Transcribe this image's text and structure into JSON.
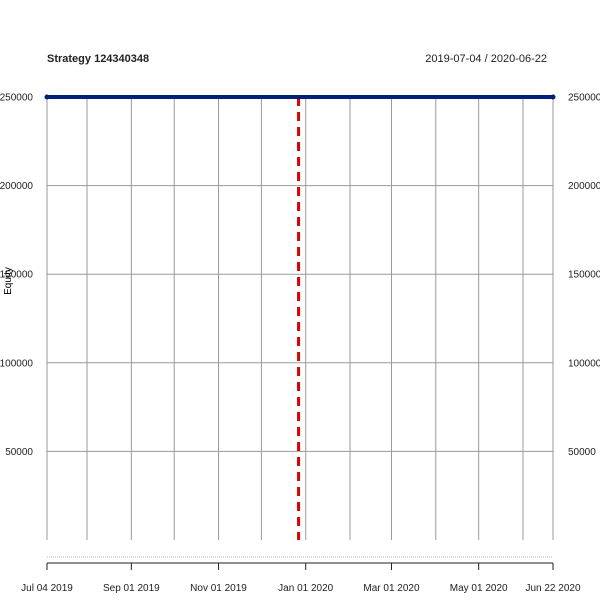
{
  "chart_data": {
    "type": "line",
    "title": "Strategy 124340348",
    "date_range_label": "2019-07-04 / 2020-06-22",
    "ylabel": "Equity",
    "xlabel": "",
    "x_range": [
      "2019-07-04",
      "2020-06-22"
    ],
    "ylim": [
      0,
      250000
    ],
    "grid": true,
    "x_ticks": [
      {
        "date": "2019-07-04",
        "label": "Jul 04 2019"
      },
      {
        "date": "2019-09-01",
        "label": "Sep 01 2019"
      },
      {
        "date": "2019-11-01",
        "label": "Nov 01 2019"
      },
      {
        "date": "2020-01-01",
        "label": "Jan 01 2020"
      },
      {
        "date": "2020-03-01",
        "label": "Mar 01 2020"
      },
      {
        "date": "2020-05-01",
        "label": "May 01 2020"
      },
      {
        "date": "2020-06-22",
        "label": "Jun 22 2020"
      }
    ],
    "x_gridlines": [
      "2019-08-01",
      "2019-10-01",
      "2019-12-01",
      "2020-02-01",
      "2020-04-01",
      "2020-06-01"
    ],
    "y_ticks": [
      {
        "value": 50000,
        "label": "50000"
      },
      {
        "value": 100000,
        "label": "100000"
      },
      {
        "value": 150000,
        "label": "150000"
      },
      {
        "value": 200000,
        "label": "200000"
      },
      {
        "value": 250000,
        "label": "250000"
      }
    ],
    "series": [
      {
        "color": "#001f7a",
        "points": [
          {
            "date": "2019-07-04",
            "value": 250000
          },
          {
            "date": "2020-06-22",
            "value": 250000
          }
        ]
      }
    ],
    "vertical_marker": {
      "date": "2019-12-27",
      "color": "#dd0000",
      "style": "dashed"
    }
  }
}
